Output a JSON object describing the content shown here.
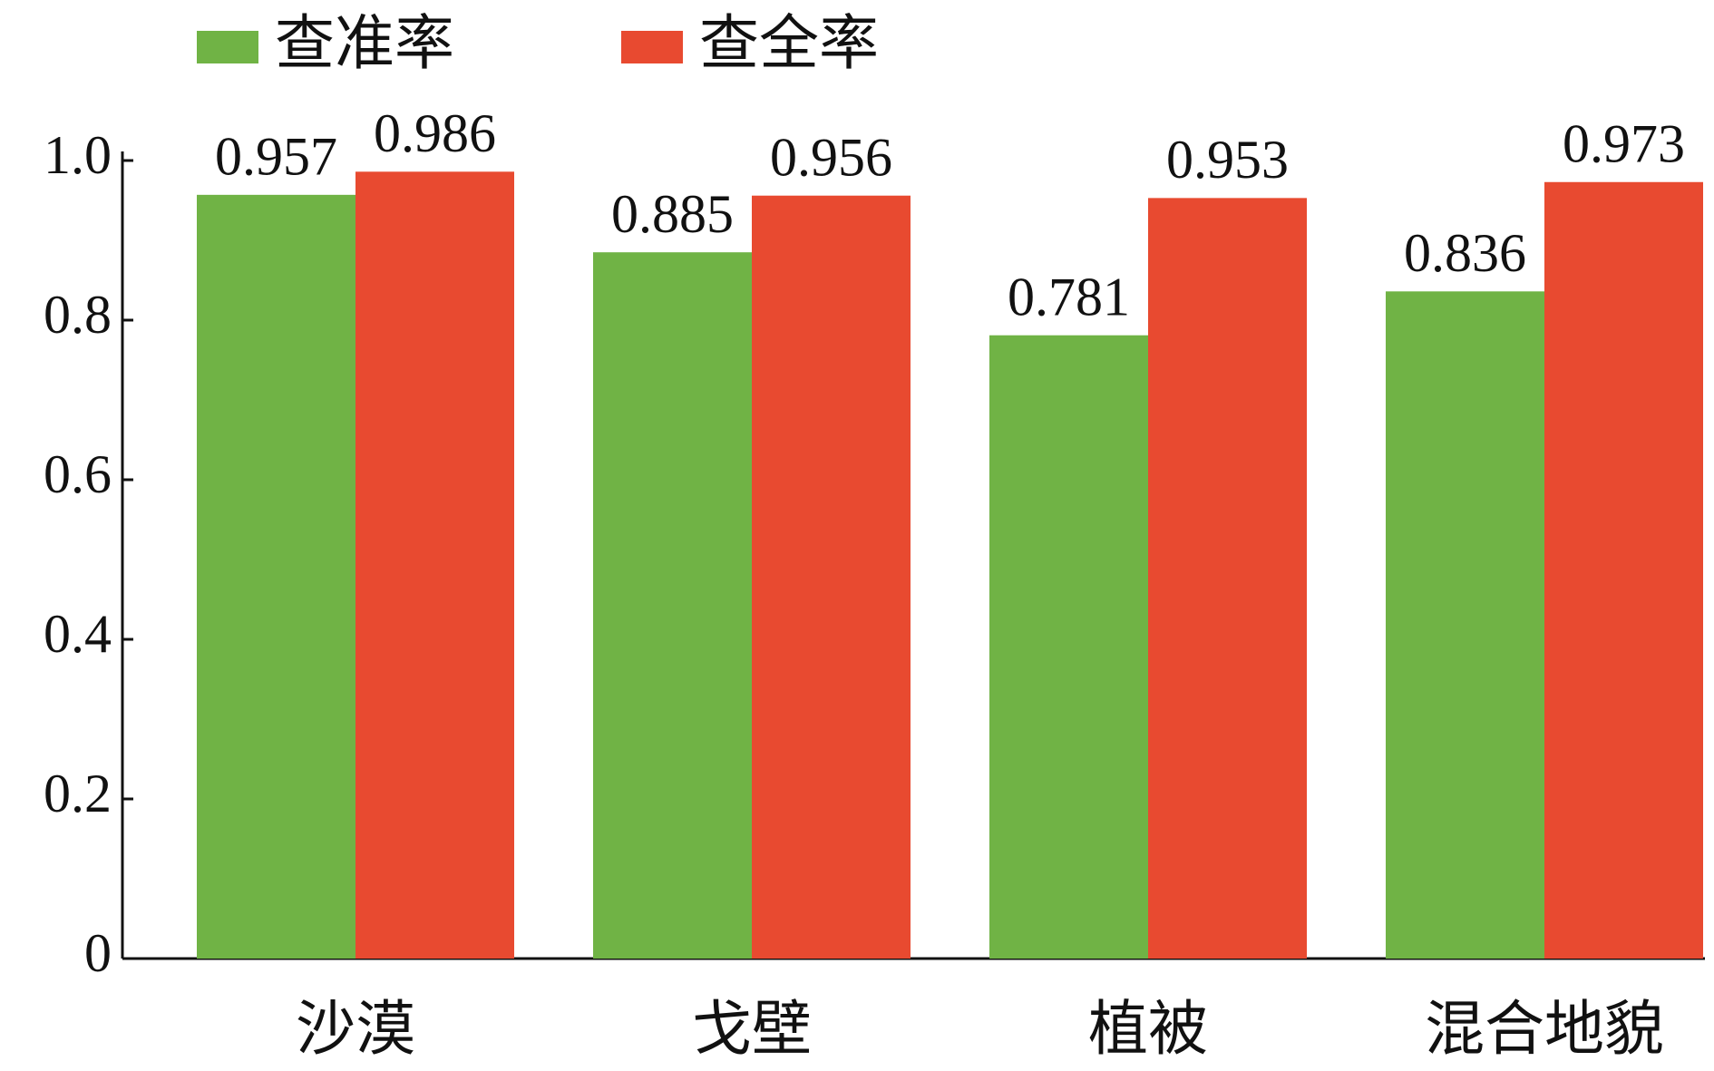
{
  "chart_data": {
    "type": "bar",
    "categories": [
      "沙漠",
      "戈壁",
      "植被",
      "混合地貌"
    ],
    "series": [
      {
        "name": "查准率",
        "color": "#70b345",
        "values": [
          0.957,
          0.885,
          0.781,
          0.836
        ]
      },
      {
        "name": "查全率",
        "color": "#e84a30",
        "values": [
          0.986,
          0.956,
          0.953,
          0.973
        ]
      }
    ],
    "ylim": [
      0,
      1
    ],
    "yticks": [
      0,
      0.2,
      0.4,
      0.6,
      0.8,
      {
        "value": 1,
        "label": "1.0"
      }
    ],
    "legend": "top"
  }
}
